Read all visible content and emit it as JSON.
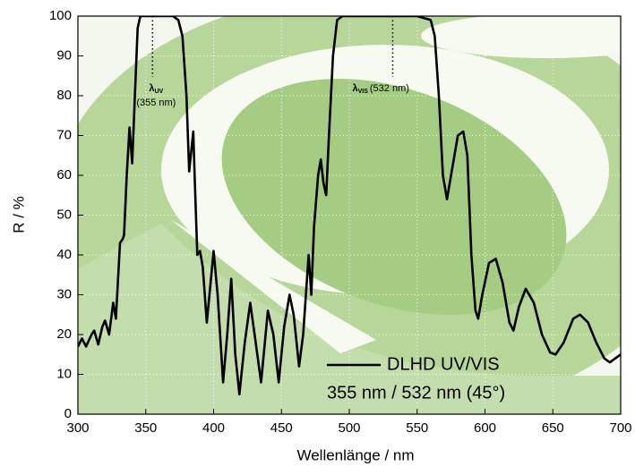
{
  "chart_data": {
    "type": "line",
    "x_label": "Wellenlänge / nm",
    "y_label": "R / %",
    "xlim": [
      300,
      700
    ],
    "ylim": [
      0,
      100
    ],
    "xticks": [
      300,
      350,
      400,
      450,
      500,
      550,
      600,
      650,
      700
    ],
    "yticks": [
      0,
      10,
      20,
      30,
      40,
      50,
      60,
      70,
      80,
      90,
      100
    ],
    "grid": true,
    "x": [
      300,
      303,
      306,
      310,
      312,
      315,
      318,
      320,
      323,
      326,
      328,
      331,
      333,
      334,
      336,
      338,
      340,
      342,
      344,
      346,
      350,
      360,
      370,
      374,
      377,
      380,
      382,
      385,
      386,
      388,
      390,
      392,
      395,
      400,
      403,
      407,
      410,
      413,
      416,
      419,
      423,
      427,
      431,
      435,
      440,
      444,
      448,
      452,
      456,
      459,
      463,
      466,
      470,
      472,
      474,
      477,
      479,
      481,
      483,
      485,
      488,
      491,
      495,
      500,
      520,
      550,
      560,
      563,
      566,
      569,
      572,
      575,
      580,
      584,
      587,
      590,
      593,
      595,
      598,
      603,
      608,
      613,
      618,
      621,
      625,
      630,
      636,
      642,
      648,
      652,
      658,
      665,
      670,
      676,
      682,
      688,
      692,
      696,
      700
    ],
    "series": [
      {
        "name": "DLHD UV/VIS",
        "color": "#000000",
        "values": [
          17,
          19,
          17,
          20,
          21,
          17.5,
          22,
          23.5,
          20,
          28,
          24,
          43,
          44,
          45,
          60,
          72,
          63,
          80,
          97,
          100,
          100,
          100,
          100,
          99,
          95,
          80,
          61,
          71,
          60,
          40,
          41,
          37,
          23,
          41,
          30,
          8,
          20,
          34,
          15,
          5,
          18,
          28,
          18,
          8,
          26,
          20,
          8,
          22,
          30,
          25,
          12,
          20,
          40,
          30,
          47,
          60,
          64,
          58,
          55,
          70,
          90,
          99,
          100,
          100,
          100,
          100,
          99,
          95,
          80,
          60,
          54,
          60,
          70,
          71,
          65,
          40,
          26,
          24,
          30,
          38,
          39,
          33,
          23,
          21,
          27,
          31.5,
          28,
          20,
          15.5,
          15,
          18,
          24,
          25,
          23,
          18,
          14,
          13,
          14,
          15
        ]
      }
    ],
    "legend_note": "355 nm / 532 nm (45°)",
    "annotations": [
      {
        "x": 355,
        "symbol": "λ",
        "sub": "UV",
        "text": "(355 nm)"
      },
      {
        "x": 532,
        "symbol": "λ",
        "sub": "VIS",
        "text": "(532 nm)"
      }
    ]
  }
}
